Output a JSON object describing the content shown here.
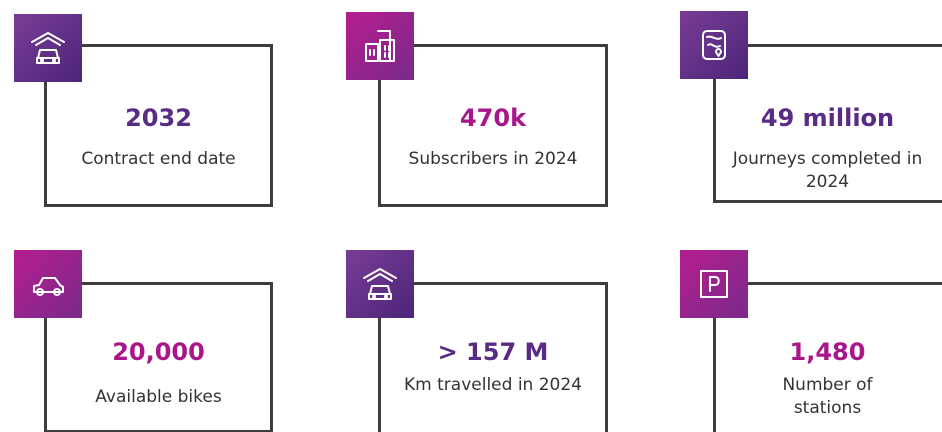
{
  "cards": [
    {
      "value": "2032",
      "label": "Contract end date"
    },
    {
      "value": "470k",
      "label": "Subscribers in 2024"
    },
    {
      "value": "49 million",
      "label": "Journeys completed in 2024"
    },
    {
      "value": "20,000",
      "label": "Available bikes"
    },
    {
      "value": "> 157 M",
      "label": "Km travelled in 2024"
    },
    {
      "value": "1,480",
      "label": "Number of stations"
    }
  ]
}
